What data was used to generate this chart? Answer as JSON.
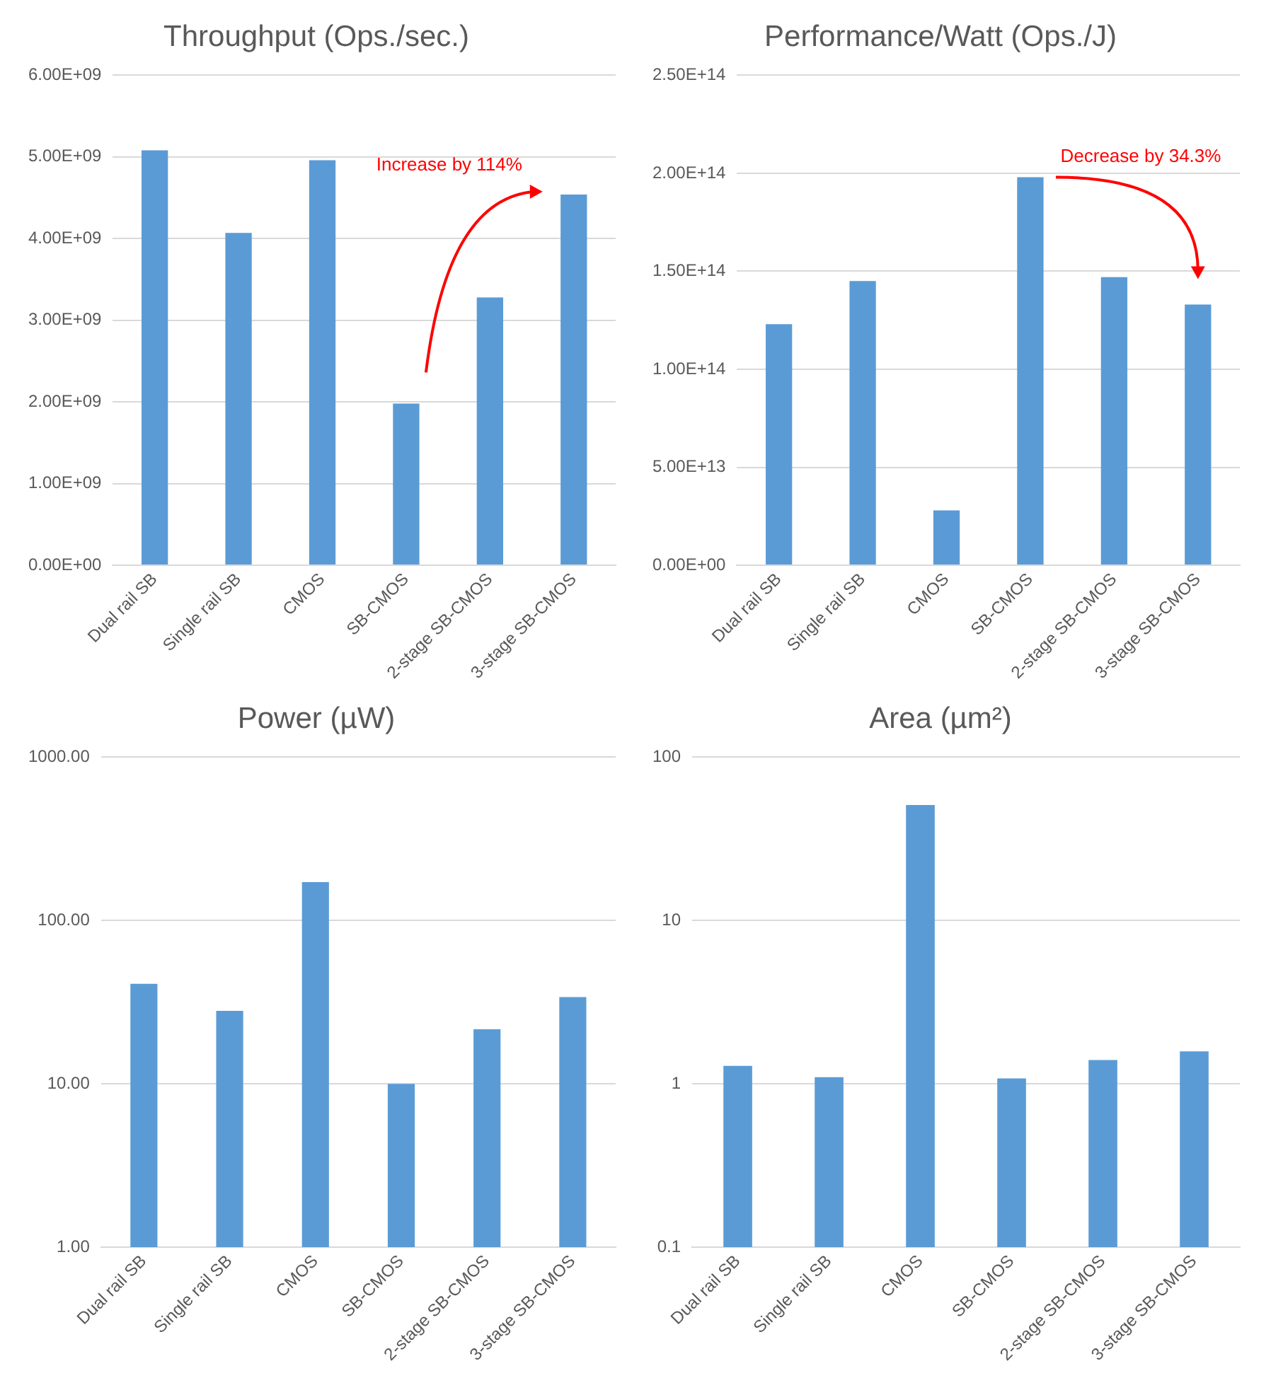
{
  "chart_data": [
    {
      "type": "bar",
      "title": "Throughput (Ops./sec.)",
      "categories": [
        "Dual rail SB",
        "Single rail SB",
        "CMOS",
        "SB-CMOS",
        "2-stage SB-CMOS",
        "3-stage SB-CMOS"
      ],
      "values": [
        5080000000.0,
        4070000000.0,
        4960000000.0,
        1980000000.0,
        3280000000.0,
        4540000000.0
      ],
      "color": "#5b9bd5",
      "ylim": [
        0,
        6000000000.0
      ],
      "yticks": [
        {
          "value": 0,
          "label": "0.00E+00"
        },
        {
          "value": 1000000000.0,
          "label": "1.00E+09"
        },
        {
          "value": 2000000000.0,
          "label": "2.00E+09"
        },
        {
          "value": 3000000000.0,
          "label": "3.00E+09"
        },
        {
          "value": 4000000000.0,
          "label": "4.00E+09"
        },
        {
          "value": 5000000000.0,
          "label": "5.00E+09"
        },
        {
          "value": 6000000000.0,
          "label": "6.00E+09"
        }
      ],
      "grid": "y",
      "annotations": [
        "Increase by 114%"
      ]
    },
    {
      "type": "bar",
      "title": "Performance/Watt (Ops./J)",
      "categories": [
        "Dual rail SB",
        "Single rail SB",
        "CMOS",
        "SB-CMOS",
        "2-stage SB-CMOS",
        "3-stage SB-CMOS"
      ],
      "values": [
        123000000000000.0,
        145000000000000.0,
        28000000000000.0,
        198000000000000.0,
        147000000000000.0,
        133000000000000.0
      ],
      "color": "#5b9bd5",
      "ylim": [
        0,
        250000000000000.0
      ],
      "yticks": [
        {
          "value": 0,
          "label": "0.00E+00"
        },
        {
          "value": 50000000000000.0,
          "label": "5.00E+13"
        },
        {
          "value": 100000000000000.0,
          "label": "1.00E+14"
        },
        {
          "value": 150000000000000.0,
          "label": "1.50E+14"
        },
        {
          "value": 200000000000000.0,
          "label": "2.00E+14"
        },
        {
          "value": 250000000000000.0,
          "label": "2.50E+14"
        }
      ],
      "grid": "y",
      "annotations": [
        "Decrease by 34.3%"
      ]
    },
    {
      "type": "bar",
      "title": "Power (µW)",
      "categories": [
        "Dual rail SB",
        "Single rail SB",
        "CMOS",
        "SB-CMOS",
        "2-stage SB-CMOS",
        "3-stage SB-CMOS"
      ],
      "values": [
        41,
        28,
        172,
        10,
        21.6,
        34
      ],
      "color": "#5b9bd5",
      "log": "y",
      "ylim": [
        1,
        1000
      ],
      "yticks": [
        {
          "value": 1,
          "label": "1.00"
        },
        {
          "value": 10,
          "label": "10.00"
        },
        {
          "value": 100,
          "label": "100.00"
        },
        {
          "value": 1000,
          "label": "1000.00"
        }
      ],
      "grid": "y"
    },
    {
      "type": "bar",
      "title": "Area (µm²)",
      "categories": [
        "Dual rail SB",
        "Single rail SB",
        "CMOS",
        "SB-CMOS",
        "2-stage SB-CMOS",
        "3-stage SB-CMOS"
      ],
      "values": [
        1.29,
        1.1,
        51,
        1.08,
        1.4,
        1.58
      ],
      "color": "#5b9bd5",
      "log": "y",
      "ylim": [
        0.1,
        100
      ],
      "yticks": [
        0.1,
        1,
        10,
        100
      ],
      "grid": "y"
    }
  ]
}
